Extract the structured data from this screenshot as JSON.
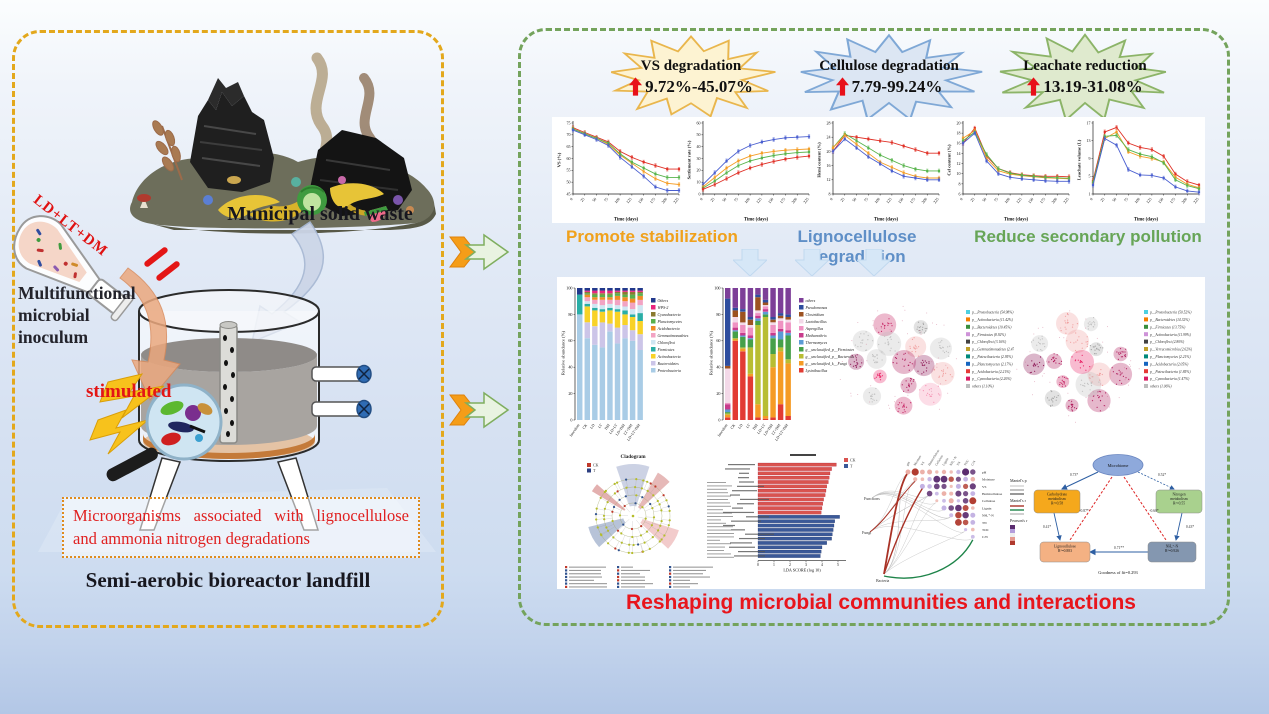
{
  "left_panel": {
    "waste_label": "Municipal solid waste",
    "flask_label": "LD+LT+DM",
    "inoculum_label": "Multifunctional microbial inoculum",
    "stimulated_label": "stimulated",
    "mechanism_note": "Microorganisms associated with lignocellulose and ammonia nitrogen degradations",
    "title": "Semi-aerobic bioreactor landfill"
  },
  "right_panel": {
    "badges": [
      {
        "label": "VS degradation",
        "value": "9.72%-45.07%",
        "fill": "#fdf3d2",
        "stroke": "#e9b64d"
      },
      {
        "label": "Cellulose degradation",
        "value": "7.79-99.24%",
        "fill": "#dce6f3",
        "stroke": "#7fa8d6"
      },
      {
        "label": "Leachate reduction",
        "value": "13.19-31.08%",
        "fill": "#dfeace",
        "stroke": "#8cb468"
      }
    ],
    "benefits": [
      {
        "label": "Promote stabilization",
        "color": "#f0a11c"
      },
      {
        "label": "Lignocellulose degradation",
        "color": "#5f8fc7"
      },
      {
        "label": "Reduce secondary pollution",
        "color": "#67a557"
      }
    ],
    "bottom_title": "Reshaping microbial communities and interactions"
  },
  "chart_data": [
    {
      "type": "line",
      "title": "",
      "xlabel": "Time (days)",
      "ylabel": "VS (%)",
      "ylim": [
        45,
        75
      ],
      "yticks": [
        45,
        50,
        55,
        60,
        65,
        70,
        75
      ],
      "x": [
        0,
        25,
        50,
        75,
        100,
        125,
        150,
        175,
        200,
        225
      ],
      "series": [
        {
          "name": "CK",
          "color": "#e03127",
          "values": [
            73,
            71,
            69,
            67,
            63,
            60.5,
            58.5,
            57,
            55.5,
            55.5
          ]
        },
        {
          "name": "T1",
          "color": "#f59d25",
          "values": [
            72.5,
            70.5,
            68.5,
            66,
            61.5,
            58,
            54.5,
            51.5,
            49.5,
            49
          ]
        },
        {
          "name": "T2",
          "color": "#58b44c",
          "values": [
            72.5,
            70.5,
            68.5,
            66.5,
            62,
            58.5,
            56,
            53.5,
            52,
            52
          ]
        },
        {
          "name": "T3",
          "color": "#4a5fd0",
          "values": [
            72,
            70,
            68,
            65.5,
            60.5,
            56.5,
            52.5,
            48,
            46.5,
            46.5
          ]
        }
      ]
    },
    {
      "type": "line",
      "title": "",
      "xlabel": "Time (days)",
      "ylabel": "Settlement rate (%)",
      "ylim": [
        0,
        60
      ],
      "yticks": [
        0,
        10,
        20,
        30,
        40,
        50,
        60
      ],
      "x": [
        0,
        25,
        50,
        75,
        100,
        125,
        150,
        175,
        200,
        225
      ],
      "series": [
        {
          "name": "T3",
          "color": "#4a5fd0",
          "values": [
            8,
            18,
            28,
            36,
            41,
            44,
            46,
            47.5,
            48,
            48.5
          ]
        },
        {
          "name": "T1",
          "color": "#f59d25",
          "values": [
            6,
            14,
            22,
            28,
            32,
            34.5,
            36,
            37,
            37.5,
            38
          ]
        },
        {
          "name": "T2",
          "color": "#58b44c",
          "values": [
            5,
            11,
            18,
            24,
            28,
            30.5,
            32.5,
            34,
            35,
            35.5
          ]
        },
        {
          "name": "CK",
          "color": "#e03127",
          "values": [
            4,
            8,
            13,
            18,
            22,
            25,
            27.5,
            29.5,
            31,
            32
          ]
        }
      ]
    },
    {
      "type": "line",
      "title": "",
      "xlabel": "Time (days)",
      "ylabel": "Hemi content (%)",
      "ylim": [
        8,
        28
      ],
      "yticks": [
        8,
        12,
        16,
        20,
        24,
        28
      ],
      "x": [
        0,
        25,
        50,
        75,
        100,
        125,
        150,
        175,
        200,
        225
      ],
      "series": [
        {
          "name": "CK",
          "color": "#e03127",
          "values": [
            20,
            24.5,
            24,
            23.5,
            23,
            22.5,
            21.5,
            20.5,
            19.5,
            19.5
          ]
        },
        {
          "name": "T2",
          "color": "#58b44c",
          "values": [
            21,
            25,
            23,
            21,
            19,
            17.5,
            16,
            15,
            14.5,
            14.5
          ]
        },
        {
          "name": "T1",
          "color": "#f59d25",
          "values": [
            21,
            24.5,
            22,
            19.5,
            17,
            15.5,
            14,
            13,
            12.5,
            12.5
          ]
        },
        {
          "name": "T3",
          "color": "#4a5fd0",
          "values": [
            20,
            23.5,
            21,
            18.5,
            16.5,
            14.5,
            13,
            12.5,
            12,
            12
          ]
        }
      ]
    },
    {
      "type": "line",
      "title": "",
      "xlabel": "Time (days)",
      "ylabel": "Cel content (%)",
      "ylim": [
        6,
        20
      ],
      "yticks": [
        6,
        8,
        10,
        12,
        14,
        16,
        18,
        20
      ],
      "x": [
        0,
        25,
        50,
        75,
        100,
        125,
        150,
        175,
        200,
        225
      ],
      "series": [
        {
          "name": "CK",
          "color": "#e03127",
          "values": [
            16,
            19,
            13.5,
            11,
            10.2,
            9.8,
            9.6,
            9.5,
            9.5,
            9.4
          ]
        },
        {
          "name": "T1",
          "color": "#f59d25",
          "values": [
            17,
            18.5,
            13,
            10.6,
            9.9,
            9.6,
            9.4,
            9.2,
            9.1,
            9
          ]
        },
        {
          "name": "T2",
          "color": "#58b44c",
          "values": [
            16.5,
            18.2,
            13.8,
            11,
            10.1,
            9.7,
            9.5,
            9.3,
            9.2,
            9.1
          ]
        },
        {
          "name": "T3",
          "color": "#4a5fd0",
          "values": [
            16,
            18,
            12.5,
            10,
            9.3,
            9,
            8.8,
            8.6,
            8.5,
            8.5
          ]
        }
      ]
    },
    {
      "type": "line",
      "title": "",
      "xlabel": "Time (days)",
      "ylabel": "Leachate volume (L)",
      "ylim": [
        1,
        17
      ],
      "yticks": [
        1,
        5,
        9,
        13,
        17
      ],
      "x": [
        0,
        25,
        50,
        75,
        100,
        125,
        150,
        175,
        200,
        225
      ],
      "series": [
        {
          "name": "CK",
          "color": "#e03127",
          "values": [
            4,
            15,
            16,
            12.5,
            11.5,
            11,
            9.5,
            5.5,
            3.8,
            3
          ]
        },
        {
          "name": "T1",
          "color": "#f59d25",
          "values": [
            3.5,
            13.5,
            15,
            10.5,
            9.5,
            9,
            8.2,
            4.8,
            3.2,
            2.4
          ]
        },
        {
          "name": "T2",
          "color": "#58b44c",
          "values": [
            3.6,
            14,
            14.2,
            11,
            10,
            9.4,
            8,
            4.2,
            2.9,
            2.2
          ]
        },
        {
          "name": "T3",
          "color": "#4a5fd0",
          "values": [
            3,
            13.5,
            12,
            6.5,
            5.3,
            5.2,
            4.6,
            2.6,
            1.7,
            1.4
          ]
        }
      ]
    },
    {
      "type": "stacked-bar",
      "ylabel": "Relative abundance (%)",
      "categories": [
        "Inoculum",
        "CK",
        "LD",
        "LT",
        "DM",
        "LD+LT",
        "LD+DM",
        "LT+DM",
        "LD+LT+DM"
      ],
      "series": [
        {
          "name": "Proteobacteria",
          "color": "#a9cce6",
          "values": [
            80,
            62,
            57,
            55,
            67,
            58,
            62,
            60,
            53
          ]
        },
        {
          "name": "Bacteroidetes",
          "color": "#ccc5e8",
          "values": [
            0,
            12,
            14,
            19,
            6,
            12,
            10,
            8,
            12
          ]
        },
        {
          "name": "Actinobacteria",
          "color": "#f8d227",
          "values": [
            0,
            12,
            12,
            8,
            10,
            12,
            8,
            10,
            10
          ]
        },
        {
          "name": "Firmicutes",
          "color": "#2aaea6",
          "values": [
            15,
            2,
            2,
            2,
            2,
            2,
            3,
            2,
            6
          ]
        },
        {
          "name": "Chloroflexi",
          "color": "#cfe6f2",
          "values": [
            0,
            2,
            3,
            3,
            3,
            3,
            3,
            4,
            6
          ]
        },
        {
          "name": "Gemmatimonadetes",
          "color": "#f2a3c3",
          "values": [
            0,
            3,
            3,
            4,
            3,
            4,
            4,
            5,
            4
          ]
        },
        {
          "name": "Acidobacteria",
          "color": "#ef8c25",
          "values": [
            0,
            2,
            2,
            2,
            2,
            3,
            3,
            3,
            3
          ]
        },
        {
          "name": "Planctomycetes",
          "color": "#58b04c",
          "values": [
            0,
            1,
            2,
            2,
            2,
            2,
            2,
            3,
            2
          ]
        },
        {
          "name": "Cyanobacteria",
          "color": "#8a7a30",
          "values": [
            0,
            1,
            1,
            1,
            1,
            1,
            2,
            2,
            1
          ]
        },
        {
          "name": "WPS-2",
          "color": "#e8247e",
          "values": [
            0,
            1,
            2,
            2,
            2,
            1,
            1,
            1,
            1
          ]
        },
        {
          "name": "Others",
          "color": "#22398c",
          "values": [
            5,
            2,
            2,
            2,
            2,
            2,
            2,
            2,
            2
          ]
        }
      ]
    },
    {
      "type": "stacked-bar",
      "ylabel": "Relative abundance (%)",
      "categories": [
        "Inoculum",
        "CK",
        "LD",
        "LT",
        "DM",
        "LD+LT",
        "LD+DM",
        "LT+DM",
        "LD+LT+DM"
      ],
      "series": [
        {
          "name": "Lysinibacillus",
          "color": "#e23b33",
          "values": [
            2,
            60,
            52,
            33,
            2,
            1,
            2,
            12,
            3
          ]
        },
        {
          "name": "g__unclassified_k__Fungi",
          "color": "#f59b25",
          "values": [
            2,
            1,
            2,
            2,
            10,
            2,
            38,
            40,
            40
          ]
        },
        {
          "name": "g__unclassified_p__Bacteroidetes",
          "color": "#b8bd33",
          "values": [
            1,
            1,
            1,
            20,
            60,
            75,
            10,
            3,
            3
          ]
        },
        {
          "name": "g__unclassified_p__Firmicutes",
          "color": "#46a049",
          "values": [
            1,
            5,
            8,
            6,
            3,
            2,
            12,
            6,
            18
          ]
        },
        {
          "name": "Thermomyces",
          "color": "#5b9bd5",
          "values": [
            2,
            1,
            1,
            1,
            2,
            2,
            2,
            6,
            2
          ]
        },
        {
          "name": "Methanothrix",
          "color": "#c83b8c",
          "values": [
            4,
            2,
            2,
            2,
            2,
            2,
            2,
            2,
            2
          ]
        },
        {
          "name": "Aspergillus",
          "color": "#ef92c2",
          "values": [
            1,
            4,
            6,
            6,
            2,
            2,
            6,
            6,
            6
          ]
        },
        {
          "name": "Lactobacillus",
          "color": "#f3d9e8",
          "values": [
            26,
            4,
            2,
            2,
            2,
            1,
            2,
            2,
            2
          ]
        },
        {
          "name": "Clostridium",
          "color": "#9c5221",
          "values": [
            2,
            5,
            8,
            4,
            10,
            2,
            2,
            2,
            2
          ]
        },
        {
          "name": "Pseudomonas",
          "color": "#2e4d9e",
          "values": [
            51,
            2,
            2,
            2,
            2,
            2,
            2,
            2,
            2
          ]
        },
        {
          "name": "others",
          "color": "#7d3f98",
          "values": [
            8,
            15,
            16,
            22,
            5,
            9,
            22,
            19,
            20
          ]
        }
      ]
    },
    {
      "type": "network",
      "legend": [
        {
          "label": "p__Proteobacteria (54.98%)",
          "color": "#4dd0e1"
        },
        {
          "label": "p__Actinobacteria (11.42%)",
          "color": "#f57c00"
        },
        {
          "label": "p__Bacteroidetes (10.45%)",
          "color": "#388e3c"
        },
        {
          "label": "p__Firmicutes (8.92%)",
          "color": "#ce93d8"
        },
        {
          "label": "p__Chloroflexi (3.16%)",
          "color": "#424242"
        },
        {
          "label": "p__Gemmatimonadetes (2.47%)",
          "color": "#c0a02a"
        },
        {
          "label": "p__Patescibacteria (2.95%)",
          "color": "#00897b"
        },
        {
          "label": "p__Planctomycetes (2.17%)",
          "color": "#1565c0"
        },
        {
          "label": "p__Acidobacteria (2.21%)",
          "color": "#e53935"
        },
        {
          "label": "p__Cyanobacteria (2.20%)",
          "color": "#d81b60"
        },
        {
          "label": "others (1.10%)",
          "color": "#bdbdbd"
        }
      ]
    },
    {
      "type": "network",
      "legend": [
        {
          "label": "p__Proteobacteria (50.52%)",
          "color": "#4dd0e1"
        },
        {
          "label": "p__Bacteroidetes (14.32%)",
          "color": "#f57c00"
        },
        {
          "label": "p__Firmicutes (13.75%)",
          "color": "#388e3c"
        },
        {
          "label": "p__Actinobacteria (11.99%)",
          "color": "#ce93d8"
        },
        {
          "label": "p__Chloroflexi (2.80%)",
          "color": "#424242"
        },
        {
          "label": "p__Verrucomicrobia (2.62%)",
          "color": "#c0a02a"
        },
        {
          "label": "p__Planctomycetes (2.21%)",
          "color": "#00897b"
        },
        {
          "label": "p__Acidobacteria (2.05%)",
          "color": "#1565c0"
        },
        {
          "label": "p__Patescibacteria (1.85%)",
          "color": "#e53935"
        },
        {
          "label": "p__Cyanobacteria (1.47%)",
          "color": "#d81b60"
        },
        {
          "label": "others (1.06%)",
          "color": "#bdbdbd"
        }
      ]
    },
    {
      "type": "cladogram",
      "title": "Cladogram",
      "groups": [
        {
          "label": "CK",
          "color": "#c0392b"
        },
        {
          "label": "T",
          "color": "#2c3e80"
        }
      ]
    },
    {
      "type": "lda",
      "xlabel": "LDA SCORE (log 10)",
      "groups": [
        {
          "label": "CK",
          "color": "#d9534f"
        },
        {
          "label": "T",
          "color": "#3b5998"
        }
      ],
      "red": [
        4.9,
        4.6,
        4.5,
        4.45,
        4.4,
        4.3,
        4.25,
        4.2,
        4.1,
        4.05,
        4.0,
        3.95
      ],
      "blue": [
        5.1,
        4.8,
        4.75,
        4.7,
        4.65,
        4.6,
        4.3,
        4.0,
        3.95,
        3.9
      ]
    },
    {
      "type": "mantel",
      "rows": [
        "pH",
        "Moisture",
        "VS",
        "Hemicellulose",
        "Cellulose",
        "Lignin",
        "NH₄⁺-N",
        "TN",
        "TOC",
        "C/N"
      ],
      "nodes": [
        "Functions",
        "Fungi",
        "Bacteria"
      ],
      "legend": [
        "Mantel's p",
        "Mantel's r",
        "Pearson's r"
      ]
    },
    {
      "type": "sem",
      "nodes": {
        "micro": {
          "label": "Microbiome"
        },
        "carb": {
          "label": "Carbohydrate metabolism",
          "r2": "R²=0.58"
        },
        "nitro": {
          "label": "Nitrogen metabolism",
          "r2": "R²=0.55"
        },
        "ligno": {
          "label": "Lignocellulose",
          "r2": "R²=0.883"
        },
        "nh4": {
          "label": "NH₄⁺-N",
          "r2": "R²=0.926"
        }
      },
      "edges": {
        "m_carb": "0.73*",
        "m_nitro": "0.52*",
        "m_ligno": "-0.87*",
        "m_nh4": "-0.60*",
        "carb_ligno": "0.41*",
        "nitro_nh4": "0.43*",
        "nh4_ligno": "0.71**"
      },
      "caption": "Goodness of fit=0.293"
    }
  ]
}
